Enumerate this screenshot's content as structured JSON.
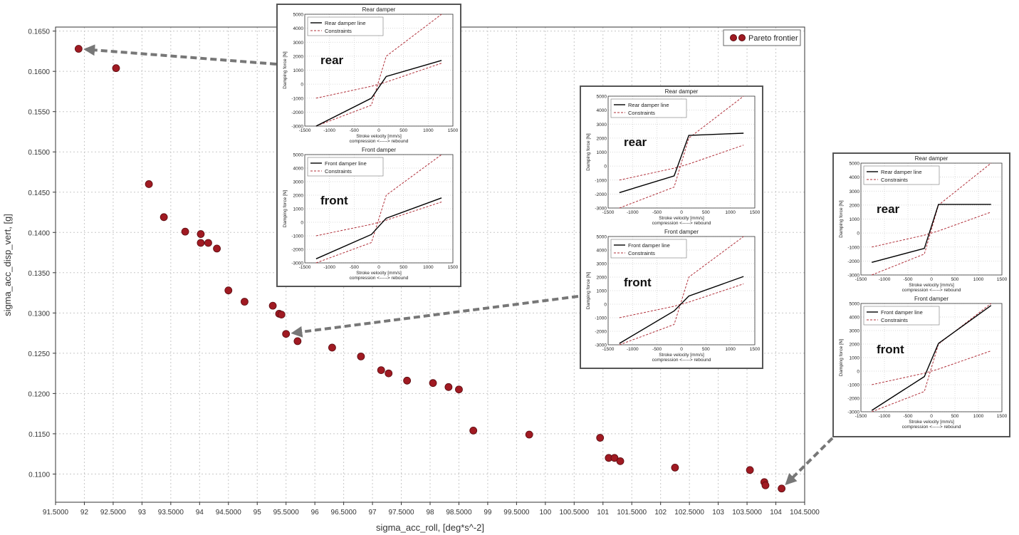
{
  "colors": {
    "marker": "#a01a22",
    "marker_edge": "#5a0b10",
    "constraint": "#b0303a",
    "damper_line": "#000000",
    "arrow": "#777777",
    "grid": "#c8c8c8"
  },
  "legend": {
    "label": "Pareto frontier"
  },
  "chart_data": {
    "type": "scatter",
    "xlabel": "sigma_acc_roll, [deg*s^-2]",
    "ylabel": "sigma_acc_disp_vert, [g]",
    "xlim": [
      91.5,
      104.5
    ],
    "ylim": [
      0.1065,
      0.1655
    ],
    "xticks": [
      {
        "v": 91.5,
        "label": "91.5000"
      },
      {
        "v": 92,
        "label": "92"
      },
      {
        "v": 92.5,
        "label": "92.5000"
      },
      {
        "v": 93,
        "label": "93"
      },
      {
        "v": 93.5,
        "label": "93.5000"
      },
      {
        "v": 94,
        "label": "94"
      },
      {
        "v": 94.5,
        "label": "94.5000"
      },
      {
        "v": 95,
        "label": "95"
      },
      {
        "v": 95.5,
        "label": "95.5000"
      },
      {
        "v": 96,
        "label": "96"
      },
      {
        "v": 96.5,
        "label": "96.5000"
      },
      {
        "v": 97,
        "label": "97"
      },
      {
        "v": 97.5,
        "label": "97.5000"
      },
      {
        "v": 98,
        "label": "98"
      },
      {
        "v": 98.5,
        "label": "98.5000"
      },
      {
        "v": 99,
        "label": "99"
      },
      {
        "v": 99.5,
        "label": "99.5000"
      },
      {
        "v": 100,
        "label": "100"
      },
      {
        "v": 100.5,
        "label": "100.5000"
      },
      {
        "v": 101,
        "label": "101"
      },
      {
        "v": 101.5,
        "label": "101.5000"
      },
      {
        "v": 102,
        "label": "102"
      },
      {
        "v": 102.5,
        "label": "102.5000"
      },
      {
        "v": 103,
        "label": "103"
      },
      {
        "v": 103.5,
        "label": "103.5000"
      },
      {
        "v": 104,
        "label": "104"
      },
      {
        "v": 104.5,
        "label": "104.5000"
      }
    ],
    "yticks": [
      {
        "v": 0.11,
        "label": "0.1100"
      },
      {
        "v": 0.115,
        "label": "0.1150"
      },
      {
        "v": 0.12,
        "label": "0.1200"
      },
      {
        "v": 0.125,
        "label": "0.1250"
      },
      {
        "v": 0.13,
        "label": "0.1300"
      },
      {
        "v": 0.135,
        "label": "0.1350"
      },
      {
        "v": 0.14,
        "label": "0.1400"
      },
      {
        "v": 0.145,
        "label": "0.1450"
      },
      {
        "v": 0.15,
        "label": "0.1500"
      },
      {
        "v": 0.155,
        "label": "0.1550"
      },
      {
        "v": 0.16,
        "label": "0.1600"
      },
      {
        "v": 0.165,
        "label": "0.1650"
      }
    ],
    "grid": true,
    "legend_position": "top-right",
    "series": [
      {
        "name": "Pareto frontier",
        "points": [
          [
            91.9,
            0.1628
          ],
          [
            92.55,
            0.1604
          ],
          [
            93.12,
            0.146
          ],
          [
            93.38,
            0.1419
          ],
          [
            93.75,
            0.1401
          ],
          [
            94.02,
            0.1398
          ],
          [
            94.02,
            0.1387
          ],
          [
            94.15,
            0.1387
          ],
          [
            94.3,
            0.138
          ],
          [
            94.5,
            0.1328
          ],
          [
            94.78,
            0.1314
          ],
          [
            95.27,
            0.1309
          ],
          [
            95.38,
            0.1299
          ],
          [
            95.42,
            0.1298
          ],
          [
            95.5,
            0.1274
          ],
          [
            95.7,
            0.1265
          ],
          [
            96.3,
            0.1257
          ],
          [
            96.8,
            0.1246
          ],
          [
            97.15,
            0.1229
          ],
          [
            97.28,
            0.1225
          ],
          [
            97.6,
            0.1216
          ],
          [
            98.05,
            0.1213
          ],
          [
            98.32,
            0.1208
          ],
          [
            98.5,
            0.1205
          ],
          [
            98.75,
            0.1154
          ],
          [
            99.72,
            0.1149
          ],
          [
            100.95,
            0.1145
          ],
          [
            101.1,
            0.112
          ],
          [
            101.2,
            0.112
          ],
          [
            101.3,
            0.1116
          ],
          [
            102.25,
            0.1108
          ],
          [
            103.55,
            0.1105
          ],
          [
            103.8,
            0.109
          ],
          [
            103.82,
            0.1086
          ],
          [
            104.1,
            0.1082
          ]
        ]
      }
    ],
    "arrows": [
      {
        "from_inset": 1,
        "to": [
          91.9,
          0.1628
        ]
      },
      {
        "from_inset": 2,
        "to": [
          95.5,
          0.1274
        ]
      },
      {
        "from_inset": 3,
        "to": [
          104.1,
          0.1082
        ]
      }
    ]
  },
  "insets": [
    {
      "id": "inset-1",
      "tag_top": "rear",
      "tag_bottom": "front",
      "subplots": [
        {
          "title": "Rear damper",
          "line_label": "Rear damper line",
          "constraint_label": "Constraints",
          "xlabel_line1": "Stroke velocity [mm/s]",
          "xlabel_line2": "compression <-----> rebound",
          "ylabel": "Damping force [N]",
          "xlim": [
            -1500,
            1500
          ],
          "ylim": [
            -3000,
            5000
          ],
          "xticks": [
            -1500,
            -1000,
            -500,
            0,
            500,
            1000,
            1500
          ],
          "yticks": [
            -3000,
            -2000,
            -1000,
            0,
            1000,
            2000,
            3000,
            4000,
            5000
          ],
          "line": [
            [
              -1270,
              -3000
            ],
            [
              -150,
              -1000
            ],
            [
              150,
              550
            ],
            [
              1270,
              1700
            ]
          ],
          "constraint_upper": [
            [
              -1270,
              -3000
            ],
            [
              -150,
              -1500
            ],
            [
              150,
              2000
            ],
            [
              1270,
              5000
            ]
          ],
          "constraint_lower": [
            [
              -1270,
              -1000
            ],
            [
              -150,
              -150
            ],
            [
              150,
              150
            ],
            [
              1270,
              1500
            ]
          ]
        },
        {
          "title": "Front damper",
          "line_label": "Front damper line",
          "constraint_label": "Constraints",
          "xlabel_line1": "Stroke velocity [mm/s]",
          "xlabel_line2": "compression <-----> rebound",
          "ylabel": "Damping force [N]",
          "xlim": [
            -1500,
            1500
          ],
          "ylim": [
            -3000,
            5000
          ],
          "xticks": [
            -1500,
            -1000,
            -500,
            0,
            500,
            1000,
            1500
          ],
          "yticks": [
            -3000,
            -2000,
            -1000,
            0,
            1000,
            2000,
            3000,
            4000,
            5000
          ],
          "line": [
            [
              -1270,
              -2700
            ],
            [
              -150,
              -900
            ],
            [
              150,
              300
            ],
            [
              1270,
              1800
            ]
          ],
          "constraint_upper": [
            [
              -1270,
              -3000
            ],
            [
              -150,
              -1500
            ],
            [
              150,
              2000
            ],
            [
              1270,
              5000
            ]
          ],
          "constraint_lower": [
            [
              -1270,
              -1000
            ],
            [
              -150,
              -150
            ],
            [
              150,
              150
            ],
            [
              1270,
              1500
            ]
          ]
        }
      ]
    },
    {
      "id": "inset-2",
      "tag_top": "rear",
      "tag_bottom": "front",
      "subplots": [
        {
          "title": "Rear damper",
          "line_label": "Rear damper line",
          "constraint_label": "Constraints",
          "xlabel_line1": "Stroke velocity [mm/s]",
          "xlabel_line2": "compression <-----> rebound",
          "ylabel": "Damping force [N]",
          "xlim": [
            -1500,
            1500
          ],
          "ylim": [
            -3000,
            5000
          ],
          "xticks": [
            -1500,
            -1000,
            -500,
            0,
            500,
            1000,
            1500
          ],
          "yticks": [
            -3000,
            -2000,
            -1000,
            0,
            1000,
            2000,
            3000,
            4000,
            5000
          ],
          "line": [
            [
              -1270,
              -1900
            ],
            [
              -150,
              -700
            ],
            [
              150,
              2200
            ],
            [
              1270,
              2350
            ]
          ],
          "constraint_upper": [
            [
              -1270,
              -3000
            ],
            [
              -150,
              -1500
            ],
            [
              150,
              2000
            ],
            [
              1270,
              5000
            ]
          ],
          "constraint_lower": [
            [
              -1270,
              -1000
            ],
            [
              -150,
              -150
            ],
            [
              150,
              150
            ],
            [
              1270,
              1500
            ]
          ]
        },
        {
          "title": "Front damper",
          "line_label": "Front damper line",
          "constraint_label": "Constraints",
          "xlabel_line1": "Stroke velocity [mm/s]",
          "xlabel_line2": "compression <-----> rebound",
          "ylabel": "Damping force [N]",
          "xlim": [
            -1500,
            1500
          ],
          "ylim": [
            -3000,
            5000
          ],
          "xticks": [
            -1500,
            -1000,
            -500,
            0,
            500,
            1000,
            1500
          ],
          "yticks": [
            -3000,
            -2000,
            -1000,
            0,
            1000,
            2000,
            3000,
            4000,
            5000
          ],
          "line": [
            [
              -1270,
              -2900
            ],
            [
              -150,
              -500
            ],
            [
              150,
              600
            ],
            [
              1270,
              2050
            ]
          ],
          "constraint_upper": [
            [
              -1270,
              -3000
            ],
            [
              -150,
              -1500
            ],
            [
              150,
              2000
            ],
            [
              1270,
              5000
            ]
          ],
          "constraint_lower": [
            [
              -1270,
              -1000
            ],
            [
              -150,
              -150
            ],
            [
              150,
              150
            ],
            [
              1270,
              1500
            ]
          ]
        }
      ]
    },
    {
      "id": "inset-3",
      "tag_top": "rear",
      "tag_bottom": "front",
      "subplots": [
        {
          "title": "Rear damper",
          "line_label": "Rear damper line",
          "constraint_label": "Constraints",
          "xlabel_line1": "Stroke velocity [mm/s]",
          "xlabel_line2": "compression <-----> rebound",
          "ylabel": "Damping force [N]",
          "xlim": [
            -1500,
            1500
          ],
          "ylim": [
            -3000,
            5000
          ],
          "xticks": [
            -1500,
            -1000,
            -500,
            0,
            500,
            1000,
            1500
          ],
          "yticks": [
            -3000,
            -2000,
            -1000,
            0,
            1000,
            2000,
            3000,
            4000,
            5000
          ],
          "line": [
            [
              -1270,
              -2100
            ],
            [
              -150,
              -1100
            ],
            [
              150,
              2050
            ],
            [
              1270,
              2050
            ]
          ],
          "constraint_upper": [
            [
              -1270,
              -3000
            ],
            [
              -150,
              -1500
            ],
            [
              150,
              2000
            ],
            [
              1270,
              5000
            ]
          ],
          "constraint_lower": [
            [
              -1270,
              -1000
            ],
            [
              -150,
              -150
            ],
            [
              150,
              150
            ],
            [
              1270,
              1500
            ]
          ]
        },
        {
          "title": "Front damper",
          "line_label": "Front damper line",
          "constraint_label": "Constraints",
          "xlabel_line1": "Stroke velocity [mm/s]",
          "xlabel_line2": "compression <-----> rebound",
          "ylabel": "Damping force [N]",
          "xlim": [
            -1500,
            1500
          ],
          "ylim": [
            -3000,
            5000
          ],
          "xticks": [
            -1500,
            -1000,
            -500,
            0,
            500,
            1000,
            1500
          ],
          "yticks": [
            -3000,
            -2000,
            -1000,
            0,
            1000,
            2000,
            3000,
            4000,
            5000
          ],
          "line": [
            [
              -1270,
              -2900
            ],
            [
              -150,
              -400
            ],
            [
              150,
              2050
            ],
            [
              1270,
              4850
            ]
          ],
          "constraint_upper": [
            [
              -1270,
              -3000
            ],
            [
              -150,
              -1500
            ],
            [
              150,
              2000
            ],
            [
              1270,
              5000
            ]
          ],
          "constraint_lower": [
            [
              -1270,
              -1000
            ],
            [
              -150,
              -150
            ],
            [
              150,
              150
            ],
            [
              1270,
              1500
            ]
          ]
        }
      ]
    }
  ]
}
